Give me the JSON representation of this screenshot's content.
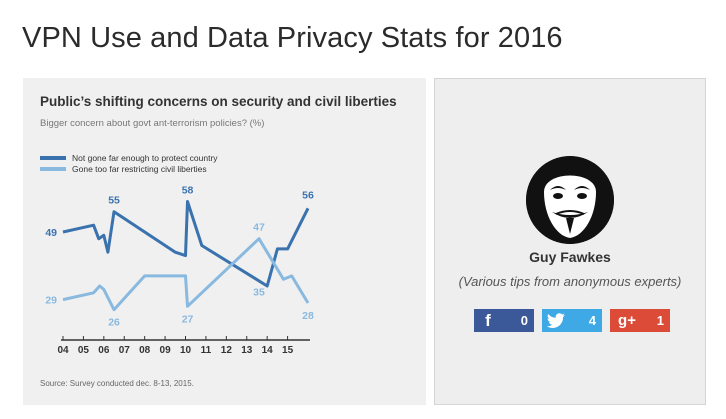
{
  "page": {
    "title": "VPN Use and Data Privacy Stats for 2016"
  },
  "chart": {
    "source": "Source: Survey conducted dec. 8-13, 2015."
  },
  "chart_data": {
    "type": "line",
    "title": "Public’s shifting concerns on security and civil liberties",
    "subtitle": "Bigger concern about govt ant-terrorism policies? (%)",
    "xlabel": "",
    "ylabel": "",
    "x_ticks": [
      "04",
      "05",
      "06",
      "07",
      "08",
      "09",
      "10",
      "11",
      "12",
      "13",
      "14",
      "15"
    ],
    "xlim": [
      2004,
      2016
    ],
    "ylim": [
      20,
      62
    ],
    "grid": false,
    "legend": "top-left",
    "series": [
      {
        "name": "Not gone far enough to protect country",
        "color": "#3a72ae",
        "x": [
          2004.0,
          2005.5,
          2005.75,
          2006.0,
          2006.2,
          2006.5,
          2008.5,
          2009.5,
          2010.0,
          2010.1,
          2010.8,
          2014.0,
          2014.5,
          2015.0,
          2016.0
        ],
        "y": [
          49,
          51,
          47,
          48,
          43,
          55,
          47,
          43,
          42,
          58,
          45,
          33,
          44,
          44,
          56
        ],
        "labels": [
          {
            "x": 2004.0,
            "y": 49,
            "text": "49"
          },
          {
            "x": 2006.5,
            "y": 55,
            "text": "55"
          },
          {
            "x": 2010.1,
            "y": 58,
            "text": "58"
          },
          {
            "x": 2016.0,
            "y": 56,
            "text": "56"
          }
        ]
      },
      {
        "name": "Gone too far restricting civil liberties",
        "color": "#8ab9e0",
        "x": [
          2004.0,
          2005.5,
          2005.8,
          2006.0,
          2006.5,
          2008.0,
          2010.0,
          2010.1,
          2013.6,
          2014.8,
          2015.2,
          2016.0
        ],
        "y": [
          29,
          31,
          33,
          32,
          26,
          36,
          36,
          27,
          47,
          35,
          36,
          28
        ],
        "labels": [
          {
            "x": 2004.0,
            "y": 29,
            "text": "29"
          },
          {
            "x": 2006.5,
            "y": 26,
            "text": "26"
          },
          {
            "x": 2010.1,
            "y": 27,
            "text": "27"
          },
          {
            "x": 2013.6,
            "y": 47,
            "text": "47"
          },
          {
            "x": 2013.6,
            "y": 35,
            "text": "35"
          },
          {
            "x": 2016.0,
            "y": 28,
            "text": "28"
          }
        ]
      }
    ]
  },
  "author": {
    "name": "Guy Fawkes",
    "description": "(Various tips from anonymous experts)",
    "avatar_icon": "guy-fawkes-mask-icon"
  },
  "share": {
    "facebook": {
      "icon": "facebook-icon",
      "glyph": "f",
      "count": "0",
      "color": "#3b5998"
    },
    "twitter": {
      "icon": "twitter-bird-icon",
      "count": "4",
      "color": "#3fa9e6"
    },
    "googleplus": {
      "icon": "google-plus-icon",
      "glyph": "g+",
      "count": "1",
      "color": "#dc4a38"
    }
  }
}
